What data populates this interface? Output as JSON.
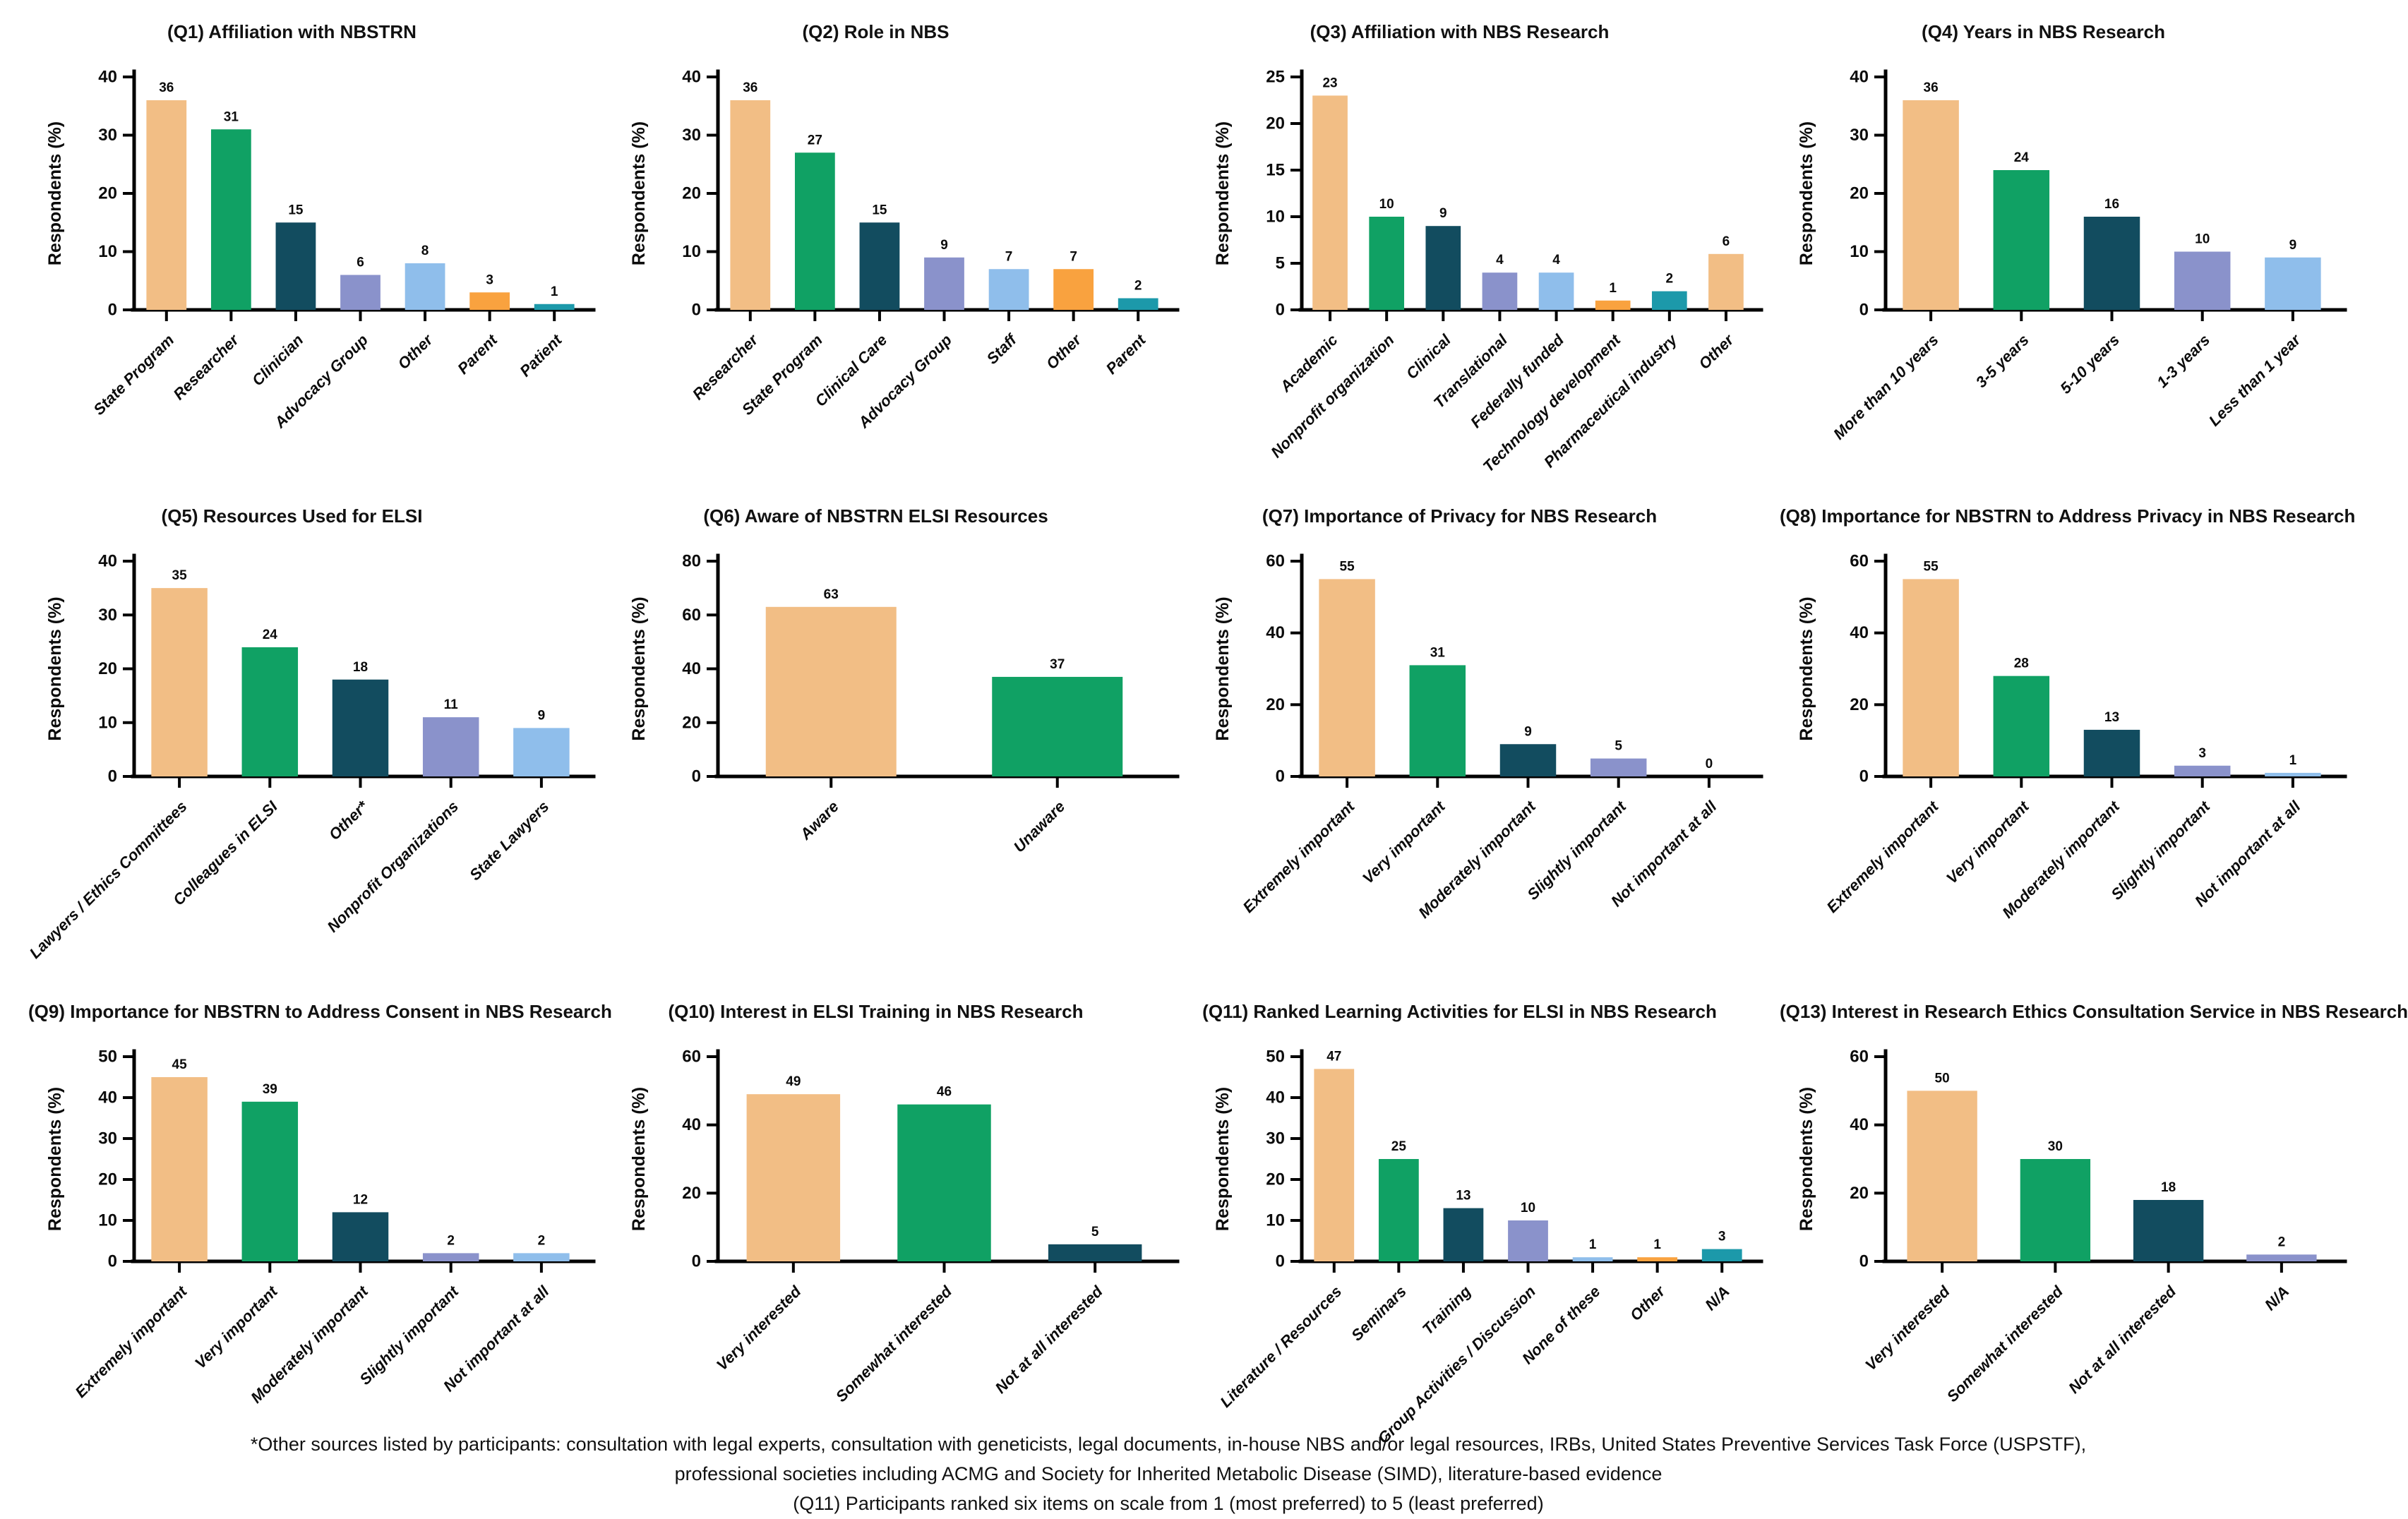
{
  "palette": {
    "tan": "#F2BE85",
    "green": "#10A164",
    "dark_teal": "#124C5F",
    "periwinkle": "#8A92CB",
    "light_blue": "#8FBEEB",
    "orange": "#F9A23F",
    "teal": "#1C99AA"
  },
  "chart_data": [
    {
      "id": "Q1",
      "type": "bar",
      "title": "(Q1) Affiliation with NBSTRN",
      "ylabel": "Respondents (%)",
      "ylim": [
        0,
        40
      ],
      "yticks": [
        0,
        10,
        20,
        30,
        40
      ],
      "categories": [
        "State Program",
        "Researcher",
        "Clinician",
        "Advocacy Group",
        "Other",
        "Parent",
        "Patient"
      ],
      "values": [
        36,
        31,
        15,
        6,
        8,
        3,
        1
      ],
      "bar_colors": [
        "#F2BE85",
        "#10A164",
        "#124C5F",
        "#8A92CB",
        "#8FBEEB",
        "#F9A23F",
        "#1C99AA"
      ]
    },
    {
      "id": "Q2",
      "type": "bar",
      "title": "(Q2) Role in NBS",
      "ylabel": "Respondents (%)",
      "ylim": [
        0,
        40
      ],
      "yticks": [
        0,
        10,
        20,
        30,
        40
      ],
      "categories": [
        "Researcher",
        "State Program",
        "Clinical Care",
        "Advocacy Group",
        "Staff",
        "Other",
        "Parent"
      ],
      "values": [
        36,
        27,
        15,
        9,
        7,
        7,
        2
      ],
      "bar_colors": [
        "#F2BE85",
        "#10A164",
        "#124C5F",
        "#8A92CB",
        "#8FBEEB",
        "#F9A23F",
        "#1C99AA"
      ]
    },
    {
      "id": "Q3",
      "type": "bar",
      "title": "(Q3) Affiliation with NBS Research",
      "ylabel": "Respondents (%)",
      "ylim": [
        0,
        25
      ],
      "yticks": [
        0,
        5,
        10,
        15,
        20,
        25
      ],
      "categories": [
        "Academic",
        "Nonprofit organization",
        "Clinical",
        "Translational",
        "Federally funded",
        "Technology development",
        "Pharmaceutical industry",
        "Other"
      ],
      "values": [
        23,
        10,
        9,
        4,
        4,
        1,
        2,
        6
      ],
      "bar_colors": [
        "#F2BE85",
        "#10A164",
        "#124C5F",
        "#8A92CB",
        "#8FBEEB",
        "#F9A23F",
        "#1C99AA",
        "#F2BE85"
      ]
    },
    {
      "id": "Q4",
      "type": "bar",
      "title": "(Q4) Years in NBS Research",
      "ylabel": "Respondents (%)",
      "ylim": [
        0,
        40
      ],
      "yticks": [
        0,
        10,
        20,
        30,
        40
      ],
      "categories": [
        "More than 10 years",
        "3-5 years",
        "5-10 years",
        "1-3 years",
        "Less than 1 year"
      ],
      "values": [
        36,
        24,
        16,
        10,
        9
      ],
      "bar_colors": [
        "#F2BE85",
        "#10A164",
        "#124C5F",
        "#8A92CB",
        "#8FBEEB"
      ]
    },
    {
      "id": "Q5",
      "type": "bar",
      "title": "(Q5) Resources Used for ELSI",
      "ylabel": "Respondents (%)",
      "ylim": [
        0,
        40
      ],
      "yticks": [
        0,
        10,
        20,
        30,
        40
      ],
      "categories": [
        "Lawyers / Ethics Committees",
        "Colleagues in ELSI",
        "Other*",
        "Nonprofit Organizations",
        "State Lawyers"
      ],
      "values": [
        35,
        24,
        18,
        11,
        9
      ],
      "bar_colors": [
        "#F2BE85",
        "#10A164",
        "#124C5F",
        "#8A92CB",
        "#8FBEEB"
      ]
    },
    {
      "id": "Q6",
      "type": "bar",
      "title": "(Q6) Aware of NBSTRN ELSI Resources",
      "ylabel": "Respondents (%)",
      "ylim": [
        0,
        80
      ],
      "yticks": [
        0,
        20,
        40,
        60,
        80
      ],
      "categories": [
        "Aware",
        "Unaware"
      ],
      "values": [
        63,
        37
      ],
      "bar_colors": [
        "#F2BE85",
        "#10A164"
      ]
    },
    {
      "id": "Q7",
      "type": "bar",
      "title": "(Q7) Importance of Privacy for NBS Research",
      "ylabel": "Respondents (%)",
      "ylim": [
        0,
        60
      ],
      "yticks": [
        0,
        20,
        40,
        60
      ],
      "categories": [
        "Extremely important",
        "Very important",
        "Moderately important",
        "Slightly important",
        "Not important at all"
      ],
      "values": [
        55,
        31,
        9,
        5,
        0
      ],
      "bar_colors": [
        "#F2BE85",
        "#10A164",
        "#124C5F",
        "#8A92CB",
        "#8FBEEB"
      ]
    },
    {
      "id": "Q8",
      "type": "bar",
      "title": "(Q8) Importance for NBSTRN to Address Privacy in NBS Research",
      "ylabel": "Respondents (%)",
      "ylim": [
        0,
        60
      ],
      "yticks": [
        0,
        20,
        40,
        60
      ],
      "categories": [
        "Extremely important",
        "Very important",
        "Moderately important",
        "Slightly important",
        "Not important at all"
      ],
      "values": [
        55,
        28,
        13,
        3,
        1
      ],
      "bar_colors": [
        "#F2BE85",
        "#10A164",
        "#124C5F",
        "#8A92CB",
        "#8FBEEB"
      ]
    },
    {
      "id": "Q9",
      "type": "bar",
      "title": "(Q9) Importance for NBSTRN to Address Consent in NBS Research",
      "ylabel": "Respondents (%)",
      "ylim": [
        0,
        50
      ],
      "yticks": [
        0,
        10,
        20,
        30,
        40,
        50
      ],
      "categories": [
        "Extremely important",
        "Very important",
        "Moderately important",
        "Slightly important",
        "Not important at all"
      ],
      "values": [
        45,
        39,
        12,
        2,
        2
      ],
      "bar_colors": [
        "#F2BE85",
        "#10A164",
        "#124C5F",
        "#8A92CB",
        "#8FBEEB"
      ]
    },
    {
      "id": "Q10",
      "type": "bar",
      "title": "(Q10) Interest in ELSI Training in NBS Research",
      "ylabel": "Respondents (%)",
      "ylim": [
        0,
        60
      ],
      "yticks": [
        0,
        20,
        40,
        60
      ],
      "categories": [
        "Very interested",
        "Somewhat interested",
        "Not at all interested"
      ],
      "values": [
        49,
        46,
        5
      ],
      "bar_colors": [
        "#F2BE85",
        "#10A164",
        "#124C5F"
      ]
    },
    {
      "id": "Q11",
      "type": "bar",
      "title": "(Q11) Ranked Learning Activities for ELSI in NBS Research",
      "ylabel": "Respondents (%)",
      "ylim": [
        0,
        50
      ],
      "yticks": [
        0,
        10,
        20,
        30,
        40,
        50
      ],
      "categories": [
        "Literature / Resources",
        "Seminars",
        "Training",
        "Group Activities / Discussion",
        "None of these",
        "Other",
        "N/A"
      ],
      "values": [
        47,
        25,
        13,
        10,
        1,
        1,
        3
      ],
      "bar_colors": [
        "#F2BE85",
        "#10A164",
        "#124C5F",
        "#8A92CB",
        "#8FBEEB",
        "#F9A23F",
        "#1C99AA"
      ]
    },
    {
      "id": "Q13",
      "type": "bar",
      "title": "(Q13) Interest in Research Ethics Consultation Service in NBS Research",
      "ylabel": "Respondents (%)",
      "ylim": [
        0,
        60
      ],
      "yticks": [
        0,
        20,
        40,
        60
      ],
      "categories": [
        "Very interested",
        "Somewhat interested",
        "Not at all interested",
        "N/A"
      ],
      "values": [
        50,
        30,
        18,
        2
      ],
      "bar_colors": [
        "#F2BE85",
        "#10A164",
        "#124C5F",
        "#8A92CB"
      ]
    }
  ],
  "footnotes": [
    "*Other sources listed by participants: consultation with legal experts, consultation with geneticists, legal documents, in-house NBS and/or legal resources, IRBs, United States Preventive Services Task Force (USPSTF),",
    "professional societies including ACMG and Society for Inherited Metabolic Disease (SIMD), literature-based evidence",
    "(Q11) Participants ranked six items on scale from 1 (most preferred) to 5 (least preferred)"
  ]
}
